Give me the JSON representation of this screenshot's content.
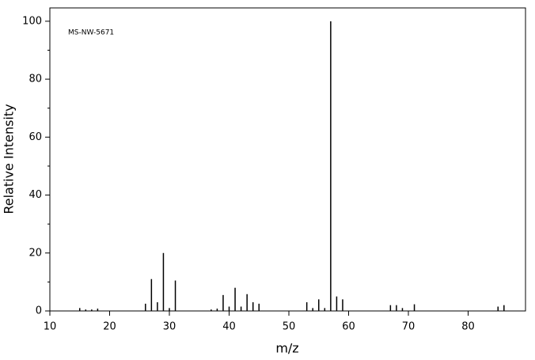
{
  "chart_data": {
    "type": "stem",
    "annotation": "MS-NW-5671",
    "x_label": "m/z",
    "y_label": "Relative Intensity",
    "x": [
      15,
      16,
      17,
      18,
      26,
      27,
      28,
      29,
      30,
      31,
      37,
      38,
      39,
      40,
      41,
      42,
      43,
      44,
      45,
      53,
      54,
      55,
      56,
      57,
      58,
      59,
      67,
      68,
      69,
      71,
      85,
      86
    ],
    "values": [
      1,
      0.5,
      0.5,
      0.8,
      2.5,
      11,
      3,
      20,
      1,
      10.5,
      0.5,
      0.8,
      5.5,
      1.5,
      8,
      1.5,
      5.8,
      3,
      2.5,
      3,
      1,
      4,
      1,
      100,
      5,
      4,
      2,
      2,
      1,
      2.3,
      1.5,
      2
    ],
    "color": "#000000",
    "xlim": [
      10,
      89.6
    ],
    "ylim": [
      0,
      104.6
    ],
    "xticks": [
      10,
      20,
      30,
      40,
      50,
      60,
      70,
      80
    ],
    "yticks": [
      0,
      20,
      40,
      60,
      80,
      100
    ],
    "yminorticks": [
      10,
      30,
      50,
      70,
      90
    ]
  }
}
